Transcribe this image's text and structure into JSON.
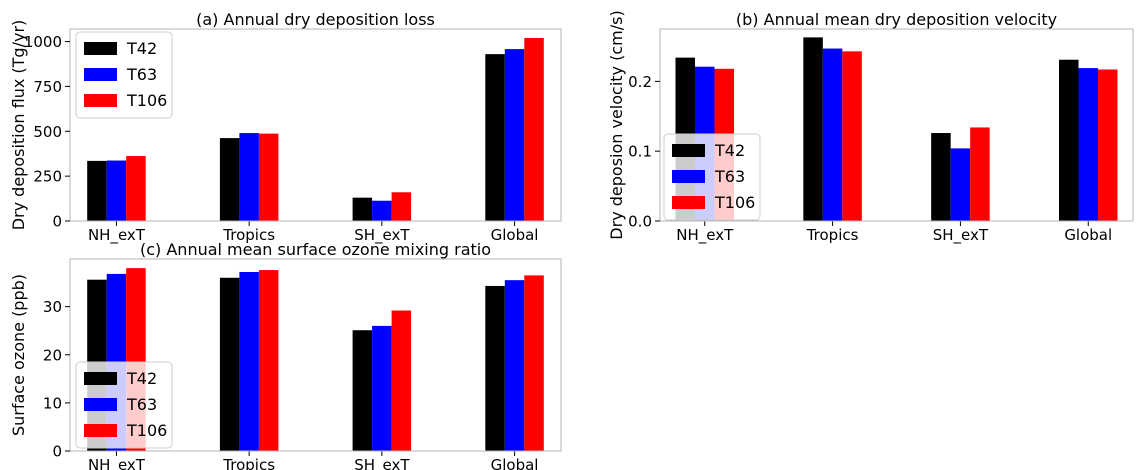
{
  "chart_data": [
    {
      "type": "bar",
      "title": "(a) Annual dry deposition loss",
      "xlabel": "",
      "ylabel": "Dry deposition flux (Tg/yr)",
      "categories": [
        "NH_exT",
        "Tropics",
        "SH_exT",
        "Global"
      ],
      "ylim": [
        0,
        1070
      ],
      "yticks": [
        0,
        250,
        500,
        750,
        1000
      ],
      "ytick_labels": [
        "0",
        "250",
        "500",
        "750",
        "1000"
      ],
      "grid": false,
      "legend": "top-left",
      "series": [
        {
          "name": "T42",
          "color": "#000000",
          "values": [
            335,
            462,
            130,
            930
          ]
        },
        {
          "name": "T63",
          "color": "#0000ff",
          "values": [
            337,
            490,
            113,
            958
          ]
        },
        {
          "name": "T106",
          "color": "#ff0000",
          "values": [
            362,
            487,
            160,
            1020
          ]
        }
      ]
    },
    {
      "type": "bar",
      "title": "(b) Annual mean dry deposition velocity",
      "xlabel": "",
      "ylabel": "Dry deposion velocity (cm/s)",
      "categories": [
        "NH_exT",
        "Tropics",
        "SH_exT",
        "Global"
      ],
      "ylim": [
        0,
        0.275
      ],
      "yticks": [
        0,
        0.1,
        0.2
      ],
      "ytick_labels": [
        "0.0",
        "0.1",
        "0.2"
      ],
      "grid": false,
      "legend": "center-left",
      "series": [
        {
          "name": "T42",
          "color": "#000000",
          "values": [
            0.234,
            0.263,
            0.126,
            0.231
          ]
        },
        {
          "name": "T63",
          "color": "#0000ff",
          "values": [
            0.221,
            0.247,
            0.104,
            0.219
          ]
        },
        {
          "name": "T106",
          "color": "#ff0000",
          "values": [
            0.218,
            0.243,
            0.134,
            0.217
          ]
        }
      ]
    },
    {
      "type": "bar",
      "title": "(c) Annual mean surface ozone mixing ratio",
      "xlabel": "",
      "ylabel": "Surface ozone (ppb)",
      "categories": [
        "NH_exT",
        "Tropics",
        "SH_exT",
        "Global"
      ],
      "ylim": [
        0,
        39.9
      ],
      "yticks": [
        0,
        10,
        20,
        30
      ],
      "ytick_labels": [
        "0",
        "10",
        "20",
        "30"
      ],
      "grid": false,
      "legend": "bottom-left",
      "series": [
        {
          "name": "T42",
          "color": "#000000",
          "values": [
            35.6,
            36.0,
            25.1,
            34.3
          ]
        },
        {
          "name": "T63",
          "color": "#0000ff",
          "values": [
            36.8,
            37.2,
            26.0,
            35.5
          ]
        },
        {
          "name": "T106",
          "color": "#ff0000",
          "values": [
            38.0,
            37.6,
            29.2,
            36.5
          ]
        }
      ]
    }
  ]
}
